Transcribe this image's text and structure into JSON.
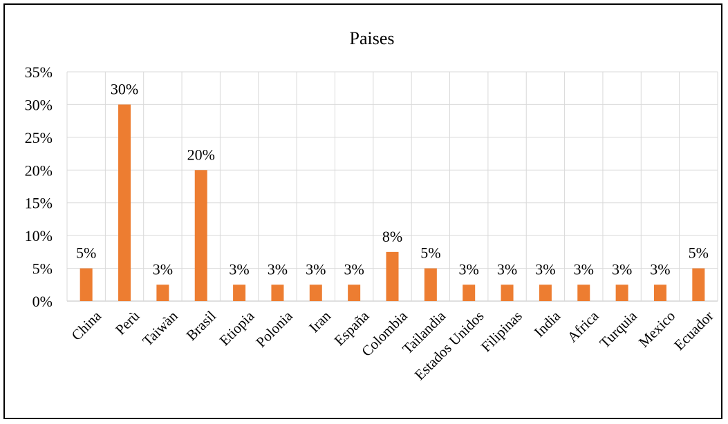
{
  "chart_data": {
    "type": "bar",
    "title": "Paises",
    "xlabel": "",
    "ylabel": "",
    "ylim": [
      0,
      35
    ],
    "yticks": [
      "0%",
      "5%",
      "10%",
      "15%",
      "20%",
      "25%",
      "30%",
      "35%"
    ],
    "grid": true,
    "bar_color": "#ED7D31",
    "categories": [
      "China",
      "Perù",
      "Taiwàn",
      "Brasil",
      "Etiopia",
      "Polonia",
      "Iran",
      "España",
      "Colombia",
      "Tailandia",
      "Estados Unidos",
      "Filipinas",
      "India",
      "Africa",
      "Turquia",
      "Mexico",
      "Ecuador"
    ],
    "values": [
      5,
      30,
      2.5,
      20,
      2.5,
      2.5,
      2.5,
      2.5,
      7.5,
      5,
      2.5,
      2.5,
      2.5,
      2.5,
      2.5,
      2.5,
      5
    ],
    "data_labels": [
      "5%",
      "30%",
      "3%",
      "20%",
      "3%",
      "3%",
      "3%",
      "3%",
      "8%",
      "5%",
      "3%",
      "3%",
      "3%",
      "3%",
      "3%",
      "3%",
      "5%"
    ]
  }
}
